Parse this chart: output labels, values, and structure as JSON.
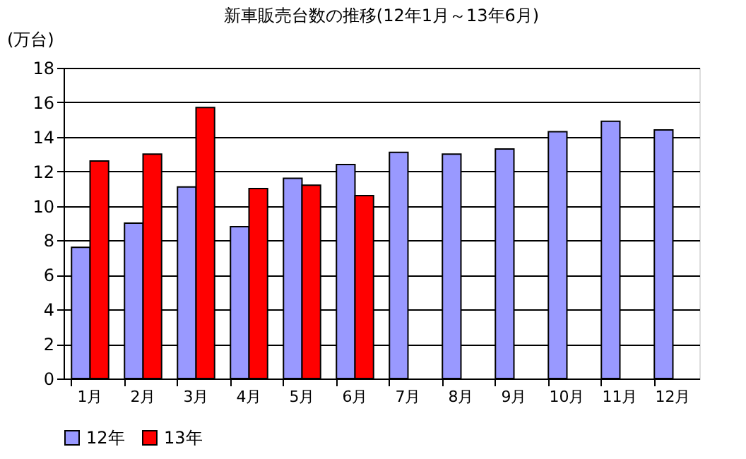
{
  "chart_data": {
    "type": "bar",
    "title": "新車販売台数の推移(12年1月～13年6月)",
    "ylabel": "(万台)",
    "categories": [
      "1月",
      "2月",
      "3月",
      "4月",
      "5月",
      "6月",
      "7月",
      "8月",
      "9月",
      "10月",
      "11月",
      "12月"
    ],
    "series": [
      {
        "name": "12年",
        "color": "#9999ff",
        "values": [
          7.6,
          9.0,
          11.1,
          8.8,
          11.6,
          12.4,
          13.1,
          13.0,
          13.3,
          14.3,
          14.9,
          14.4
        ]
      },
      {
        "name": "13年",
        "color": "#ff0000",
        "values": [
          12.6,
          13.0,
          15.7,
          11.0,
          11.2,
          10.6,
          null,
          null,
          null,
          null,
          null,
          null
        ]
      }
    ],
    "ylim": [
      0,
      18
    ],
    "yticks": [
      0,
      2,
      4,
      6,
      8,
      10,
      12,
      14,
      16,
      18
    ],
    "grid": "y",
    "legend": "bottom"
  }
}
